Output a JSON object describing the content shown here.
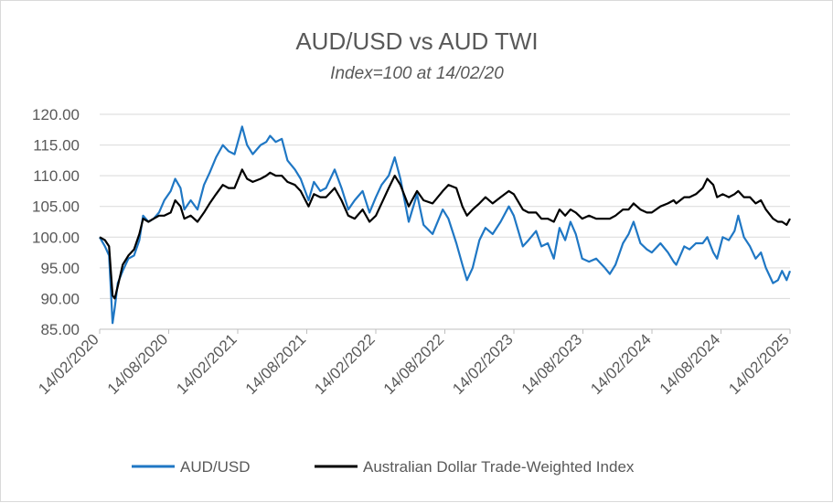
{
  "chart_data": {
    "type": "line",
    "title": "AUD/USD vs AUD TWI",
    "subtitle": "Index=100 at 14/02/20",
    "xlabel": "",
    "ylabel": "",
    "ylim": [
      85,
      120
    ],
    "y_ticks": [
      "120.00",
      "115.00",
      "110.00",
      "105.00",
      "100.00",
      "95.00",
      "90.00",
      "85.00"
    ],
    "x_ticks": [
      "14/02/2020",
      "14/08/2020",
      "14/02/2021",
      "14/08/2021",
      "14/02/2022",
      "14/08/2022",
      "14/02/2023",
      "14/08/2023",
      "14/02/2024",
      "14/08/2024",
      "14/02/2025"
    ],
    "x_range": [
      "2020-02-14",
      "2025-02-14"
    ],
    "grid": "horizontal",
    "legend_position": "bottom",
    "series": [
      {
        "name": "AUD/USD",
        "color": "#1f77c4",
        "points": [
          [
            "2020-02-14",
            100.0
          ],
          [
            "2020-02-28",
            98.5
          ],
          [
            "2020-03-10",
            97.0
          ],
          [
            "2020-03-19",
            86.0
          ],
          [
            "2020-03-25",
            88.5
          ],
          [
            "2020-04-02",
            92.5
          ],
          [
            "2020-04-15",
            94.5
          ],
          [
            "2020-04-30",
            96.5
          ],
          [
            "2020-05-15",
            97.0
          ],
          [
            "2020-05-29",
            99.5
          ],
          [
            "2020-06-08",
            103.5
          ],
          [
            "2020-06-22",
            102.5
          ],
          [
            "2020-07-06",
            103.0
          ],
          [
            "2020-07-20",
            104.0
          ],
          [
            "2020-08-03",
            106.0
          ],
          [
            "2020-08-20",
            107.5
          ],
          [
            "2020-09-01",
            109.5
          ],
          [
            "2020-09-15",
            108.0
          ],
          [
            "2020-09-25",
            104.5
          ],
          [
            "2020-10-12",
            106.0
          ],
          [
            "2020-10-30",
            104.5
          ],
          [
            "2020-11-16",
            108.5
          ],
          [
            "2020-12-01",
            110.5
          ],
          [
            "2020-12-18",
            113.0
          ],
          [
            "2021-01-05",
            115.0
          ],
          [
            "2021-01-20",
            114.0
          ],
          [
            "2021-02-05",
            113.5
          ],
          [
            "2021-02-25",
            118.0
          ],
          [
            "2021-03-10",
            115.0
          ],
          [
            "2021-03-25",
            113.5
          ],
          [
            "2021-04-15",
            115.0
          ],
          [
            "2021-04-30",
            115.5
          ],
          [
            "2021-05-10",
            116.5
          ],
          [
            "2021-05-25",
            115.5
          ],
          [
            "2021-06-10",
            116.0
          ],
          [
            "2021-06-25",
            112.5
          ],
          [
            "2021-07-15",
            111.0
          ],
          [
            "2021-07-30",
            109.5
          ],
          [
            "2021-08-20",
            106.0
          ],
          [
            "2021-09-03",
            109.0
          ],
          [
            "2021-09-20",
            107.5
          ],
          [
            "2021-10-05",
            108.0
          ],
          [
            "2021-10-28",
            111.0
          ],
          [
            "2021-11-15",
            108.0
          ],
          [
            "2021-12-03",
            104.5
          ],
          [
            "2021-12-20",
            106.0
          ],
          [
            "2022-01-10",
            107.5
          ],
          [
            "2022-01-28",
            104.0
          ],
          [
            "2022-02-14",
            106.5
          ],
          [
            "2022-03-01",
            108.5
          ],
          [
            "2022-03-20",
            110.0
          ],
          [
            "2022-04-05",
            113.0
          ],
          [
            "2022-04-20",
            109.5
          ],
          [
            "2022-05-12",
            102.5
          ],
          [
            "2022-06-03",
            107.0
          ],
          [
            "2022-06-20",
            102.0
          ],
          [
            "2022-07-14",
            100.5
          ],
          [
            "2022-08-10",
            104.5
          ],
          [
            "2022-08-25",
            103.0
          ],
          [
            "2022-09-15",
            99.0
          ],
          [
            "2022-10-01",
            95.5
          ],
          [
            "2022-10-13",
            93.0
          ],
          [
            "2022-10-28",
            95.0
          ],
          [
            "2022-11-15",
            99.5
          ],
          [
            "2022-12-01",
            101.5
          ],
          [
            "2022-12-20",
            100.5
          ],
          [
            "2023-01-10",
            102.5
          ],
          [
            "2023-02-01",
            105.0
          ],
          [
            "2023-02-14",
            103.5
          ],
          [
            "2023-03-10",
            98.5
          ],
          [
            "2023-03-25",
            99.5
          ],
          [
            "2023-04-14",
            101.0
          ],
          [
            "2023-04-28",
            98.5
          ],
          [
            "2023-05-15",
            99.0
          ],
          [
            "2023-05-31",
            96.5
          ],
          [
            "2023-06-15",
            101.5
          ],
          [
            "2023-06-30",
            99.5
          ],
          [
            "2023-07-14",
            102.5
          ],
          [
            "2023-07-28",
            100.5
          ],
          [
            "2023-08-14",
            96.5
          ],
          [
            "2023-09-01",
            96.0
          ],
          [
            "2023-09-20",
            96.5
          ],
          [
            "2023-10-13",
            95.0
          ],
          [
            "2023-10-26",
            94.0
          ],
          [
            "2023-11-10",
            95.5
          ],
          [
            "2023-11-30",
            99.0
          ],
          [
            "2023-12-15",
            100.5
          ],
          [
            "2023-12-28",
            102.5
          ],
          [
            "2024-01-15",
            99.0
          ],
          [
            "2024-02-01",
            98.0
          ],
          [
            "2024-02-14",
            97.5
          ],
          [
            "2024-03-08",
            99.0
          ],
          [
            "2024-03-28",
            97.5
          ],
          [
            "2024-04-12",
            96.0
          ],
          [
            "2024-04-19",
            95.5
          ],
          [
            "2024-05-10",
            98.5
          ],
          [
            "2024-05-24",
            98.0
          ],
          [
            "2024-06-10",
            99.0
          ],
          [
            "2024-06-28",
            99.0
          ],
          [
            "2024-07-10",
            100.0
          ],
          [
            "2024-07-26",
            97.5
          ],
          [
            "2024-08-05",
            96.5
          ],
          [
            "2024-08-20",
            100.0
          ],
          [
            "2024-09-05",
            99.5
          ],
          [
            "2024-09-20",
            101.0
          ],
          [
            "2024-09-30",
            103.5
          ],
          [
            "2024-10-15",
            100.0
          ],
          [
            "2024-10-31",
            98.5
          ],
          [
            "2024-11-15",
            96.5
          ],
          [
            "2024-11-29",
            97.5
          ],
          [
            "2024-12-12",
            95.0
          ],
          [
            "2024-12-31",
            92.5
          ],
          [
            "2025-01-13",
            93.0
          ],
          [
            "2025-01-24",
            94.5
          ],
          [
            "2025-02-05",
            93.0
          ],
          [
            "2025-02-14",
            94.5
          ]
        ]
      },
      {
        "name": "Australian Dollar Trade-Weighted Index",
        "color": "#000000",
        "points": [
          [
            "2020-02-14",
            100.0
          ],
          [
            "2020-02-28",
            99.5
          ],
          [
            "2020-03-10",
            98.5
          ],
          [
            "2020-03-19",
            90.5
          ],
          [
            "2020-03-25",
            90.0
          ],
          [
            "2020-04-02",
            92.0
          ],
          [
            "2020-04-15",
            95.5
          ],
          [
            "2020-04-30",
            97.0
          ],
          [
            "2020-05-15",
            98.0
          ],
          [
            "2020-05-29",
            100.5
          ],
          [
            "2020-06-08",
            103.0
          ],
          [
            "2020-06-22",
            102.5
          ],
          [
            "2020-07-06",
            103.0
          ],
          [
            "2020-07-20",
            103.5
          ],
          [
            "2020-08-03",
            103.5
          ],
          [
            "2020-08-20",
            104.0
          ],
          [
            "2020-09-01",
            106.0
          ],
          [
            "2020-09-15",
            105.0
          ],
          [
            "2020-09-25",
            103.0
          ],
          [
            "2020-10-12",
            103.5
          ],
          [
            "2020-10-30",
            102.5
          ],
          [
            "2020-11-16",
            104.0
          ],
          [
            "2020-12-01",
            105.5
          ],
          [
            "2020-12-18",
            107.0
          ],
          [
            "2021-01-05",
            108.5
          ],
          [
            "2021-01-20",
            108.0
          ],
          [
            "2021-02-05",
            108.0
          ],
          [
            "2021-02-25",
            111.0
          ],
          [
            "2021-03-10",
            109.5
          ],
          [
            "2021-03-25",
            109.0
          ],
          [
            "2021-04-15",
            109.5
          ],
          [
            "2021-04-30",
            110.0
          ],
          [
            "2021-05-10",
            110.5
          ],
          [
            "2021-05-25",
            110.0
          ],
          [
            "2021-06-10",
            110.0
          ],
          [
            "2021-06-25",
            109.0
          ],
          [
            "2021-07-15",
            108.5
          ],
          [
            "2021-07-30",
            107.5
          ],
          [
            "2021-08-20",
            105.0
          ],
          [
            "2021-09-03",
            107.0
          ],
          [
            "2021-09-20",
            106.5
          ],
          [
            "2021-10-05",
            106.5
          ],
          [
            "2021-10-28",
            108.0
          ],
          [
            "2021-11-15",
            106.0
          ],
          [
            "2021-12-03",
            103.5
          ],
          [
            "2021-12-20",
            103.0
          ],
          [
            "2022-01-10",
            104.5
          ],
          [
            "2022-01-28",
            102.5
          ],
          [
            "2022-02-14",
            103.5
          ],
          [
            "2022-03-01",
            105.5
          ],
          [
            "2022-03-20",
            108.0
          ],
          [
            "2022-04-05",
            110.0
          ],
          [
            "2022-04-20",
            108.5
          ],
          [
            "2022-05-12",
            105.0
          ],
          [
            "2022-06-03",
            107.5
          ],
          [
            "2022-06-20",
            106.0
          ],
          [
            "2022-07-14",
            105.5
          ],
          [
            "2022-08-10",
            107.5
          ],
          [
            "2022-08-25",
            108.5
          ],
          [
            "2022-09-15",
            108.0
          ],
          [
            "2022-10-01",
            105.0
          ],
          [
            "2022-10-13",
            103.5
          ],
          [
            "2022-10-28",
            104.5
          ],
          [
            "2022-11-15",
            105.5
          ],
          [
            "2022-12-01",
            106.5
          ],
          [
            "2022-12-20",
            105.5
          ],
          [
            "2023-01-10",
            106.5
          ],
          [
            "2023-02-01",
            107.5
          ],
          [
            "2023-02-14",
            107.0
          ],
          [
            "2023-03-10",
            104.5
          ],
          [
            "2023-03-25",
            104.0
          ],
          [
            "2023-04-14",
            104.0
          ],
          [
            "2023-04-28",
            103.0
          ],
          [
            "2023-05-15",
            103.0
          ],
          [
            "2023-05-31",
            102.5
          ],
          [
            "2023-06-15",
            104.5
          ],
          [
            "2023-06-30",
            103.5
          ],
          [
            "2023-07-14",
            104.5
          ],
          [
            "2023-07-28",
            104.0
          ],
          [
            "2023-08-14",
            103.0
          ],
          [
            "2023-09-01",
            103.5
          ],
          [
            "2023-09-20",
            103.0
          ],
          [
            "2023-10-13",
            103.0
          ],
          [
            "2023-10-26",
            103.0
          ],
          [
            "2023-11-10",
            103.5
          ],
          [
            "2023-11-30",
            104.5
          ],
          [
            "2023-12-15",
            104.5
          ],
          [
            "2023-12-28",
            105.5
          ],
          [
            "2024-01-15",
            104.5
          ],
          [
            "2024-02-01",
            104.0
          ],
          [
            "2024-02-14",
            104.0
          ],
          [
            "2024-03-08",
            105.0
          ],
          [
            "2024-03-28",
            105.5
          ],
          [
            "2024-04-12",
            106.0
          ],
          [
            "2024-04-19",
            105.5
          ],
          [
            "2024-05-10",
            106.5
          ],
          [
            "2024-05-24",
            106.5
          ],
          [
            "2024-06-10",
            107.0
          ],
          [
            "2024-06-28",
            108.0
          ],
          [
            "2024-07-10",
            109.5
          ],
          [
            "2024-07-26",
            108.5
          ],
          [
            "2024-08-05",
            106.5
          ],
          [
            "2024-08-20",
            107.0
          ],
          [
            "2024-09-05",
            106.5
          ],
          [
            "2024-09-20",
            107.0
          ],
          [
            "2024-09-30",
            107.5
          ],
          [
            "2024-10-15",
            106.5
          ],
          [
            "2024-10-31",
            106.5
          ],
          [
            "2024-11-15",
            105.5
          ],
          [
            "2024-11-29",
            106.0
          ],
          [
            "2024-12-12",
            104.5
          ],
          [
            "2024-12-31",
            103.0
          ],
          [
            "2025-01-13",
            102.5
          ],
          [
            "2025-01-24",
            102.5
          ],
          [
            "2025-02-05",
            102.0
          ],
          [
            "2025-02-14",
            103.0
          ]
        ]
      }
    ]
  }
}
